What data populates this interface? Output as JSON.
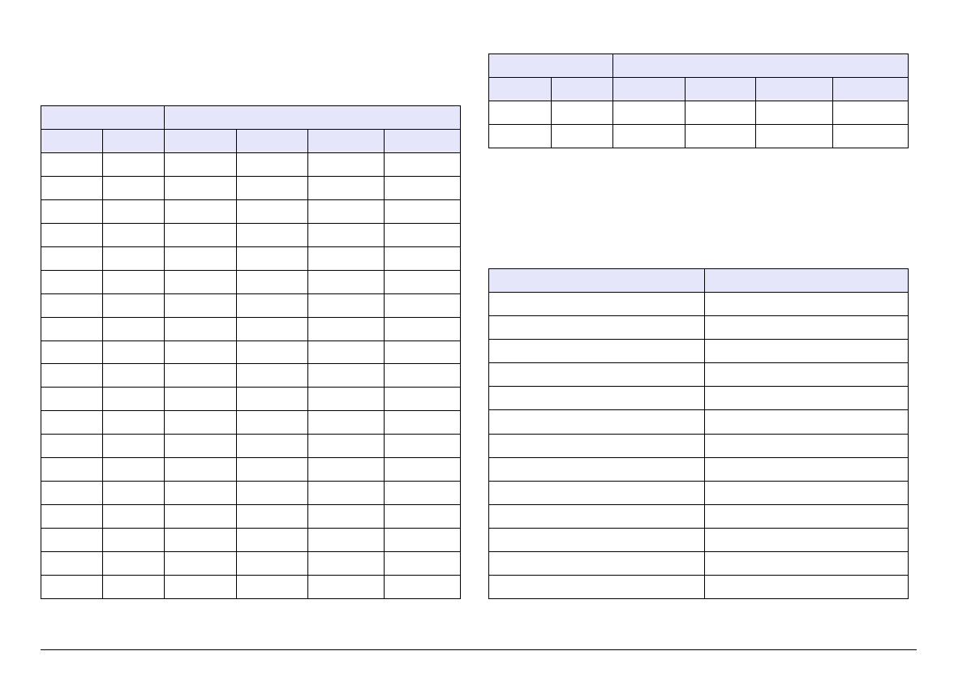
{
  "colors": {
    "header_fill": "#e6e6fa",
    "border": "#000000"
  },
  "left_table": {
    "group_headers": [
      "",
      ""
    ],
    "column_headers": [
      "",
      "",
      "",
      "",
      "",
      ""
    ],
    "rows": [
      [
        "",
        "",
        "",
        "",
        "",
        ""
      ],
      [
        "",
        "",
        "",
        "",
        "",
        ""
      ],
      [
        "",
        "",
        "",
        "",
        "",
        ""
      ],
      [
        "",
        "",
        "",
        "",
        "",
        ""
      ],
      [
        "",
        "",
        "",
        "",
        "",
        ""
      ],
      [
        "",
        "",
        "",
        "",
        "",
        ""
      ],
      [
        "",
        "",
        "",
        "",
        "",
        ""
      ],
      [
        "",
        "",
        "",
        "",
        "",
        ""
      ],
      [
        "",
        "",
        "",
        "",
        "",
        ""
      ],
      [
        "",
        "",
        "",
        "",
        "",
        ""
      ],
      [
        "",
        "",
        "",
        "",
        "",
        ""
      ],
      [
        "",
        "",
        "",
        "",
        "",
        ""
      ],
      [
        "",
        "",
        "",
        "",
        "",
        ""
      ],
      [
        "",
        "",
        "",
        "",
        "",
        ""
      ],
      [
        "",
        "",
        "",
        "",
        "",
        ""
      ],
      [
        "",
        "",
        "",
        "",
        "",
        ""
      ],
      [
        "",
        "",
        "",
        "",
        "",
        ""
      ],
      [
        "",
        "",
        "",
        "",
        "",
        ""
      ],
      [
        "",
        "",
        "",
        "",
        "",
        ""
      ]
    ]
  },
  "right_top_table": {
    "group_headers": [
      "",
      ""
    ],
    "column_headers": [
      "",
      "",
      "",
      "",
      "",
      ""
    ],
    "rows": [
      [
        "",
        "",
        "",
        "",
        "",
        ""
      ],
      [
        "",
        "",
        "",
        "",
        "",
        ""
      ]
    ]
  },
  "right_bottom_table": {
    "column_headers": [
      "",
      ""
    ],
    "rows": [
      [
        "",
        ""
      ],
      [
        "",
        ""
      ],
      [
        "",
        ""
      ],
      [
        "",
        ""
      ],
      [
        "",
        ""
      ],
      [
        "",
        ""
      ],
      [
        "",
        ""
      ],
      [
        "",
        ""
      ],
      [
        "",
        ""
      ],
      [
        "",
        ""
      ],
      [
        "",
        ""
      ],
      [
        "",
        ""
      ],
      [
        "",
        ""
      ]
    ]
  }
}
